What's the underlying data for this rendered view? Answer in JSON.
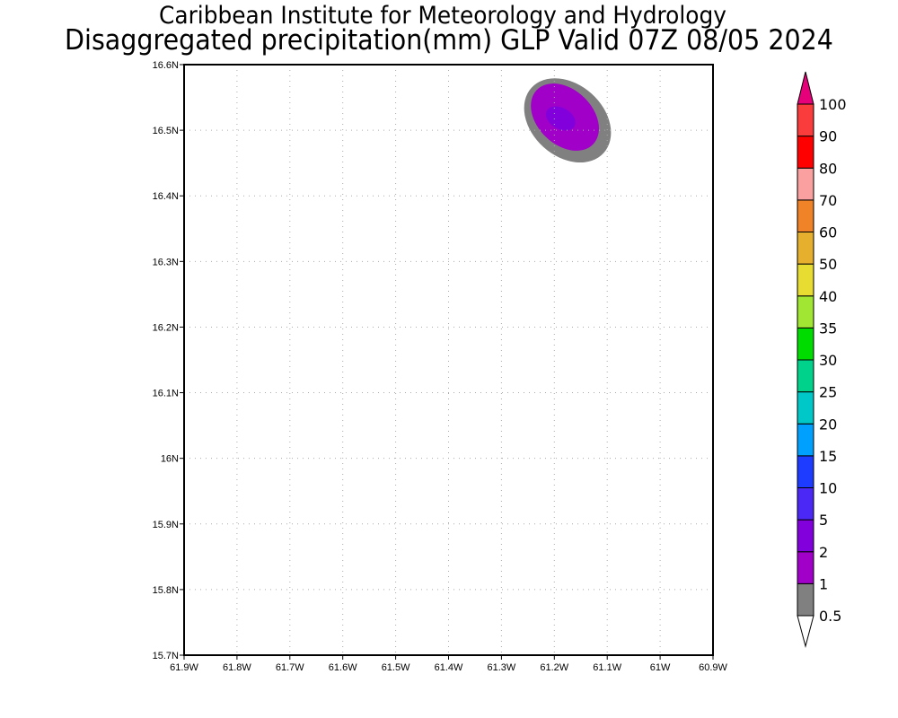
{
  "title": "Caribbean Institute for Meteorology and Hydrology",
  "subtitle": "Disaggregated precipitation(mm) GLP Valid 07Z 08/05 2024",
  "chart_data": {
    "type": "heatmap",
    "xlim": [
      -61.9,
      -60.9
    ],
    "ylim": [
      15.7,
      16.6
    ],
    "x_ticks": [
      -61.9,
      -61.8,
      -61.7,
      -61.6,
      -61.5,
      -61.4,
      -61.3,
      -61.2,
      -61.1,
      -61.0,
      -60.9
    ],
    "x_tick_labels": [
      "61.9W",
      "61.8W",
      "61.7W",
      "61.6W",
      "61.5W",
      "61.4W",
      "61.3W",
      "61.2W",
      "61.1W",
      "61W",
      "60.9W"
    ],
    "y_ticks": [
      15.7,
      15.8,
      15.9,
      16.0,
      16.1,
      16.2,
      16.3,
      16.4,
      16.5,
      16.6
    ],
    "y_tick_labels": [
      "15.7N",
      "15.8N",
      "15.9N",
      "16N",
      "16.1N",
      "16.2N",
      "16.3N",
      "16.4N",
      "16.5N",
      "16.6N"
    ],
    "grid": true,
    "precip_features": [
      {
        "level_mm": 0.5,
        "center_lon": -61.175,
        "center_lat": 16.515,
        "semi_major_deg": 0.092,
        "semi_minor_deg": 0.068,
        "rotation_deg": 42
      },
      {
        "level_mm": 1,
        "center_lon": -61.18,
        "center_lat": 16.52,
        "semi_major_deg": 0.074,
        "semi_minor_deg": 0.052,
        "rotation_deg": 44
      },
      {
        "level_mm": 2,
        "center_lon": -61.188,
        "center_lat": 16.518,
        "semi_major_deg": 0.03,
        "semi_minor_deg": 0.02,
        "rotation_deg": 30
      }
    ],
    "colorbar": {
      "labels": [
        "0.5",
        "1",
        "2",
        "5",
        "10",
        "15",
        "20",
        "25",
        "30",
        "35",
        "40",
        "50",
        "60",
        "70",
        "80",
        "90",
        "100"
      ],
      "colors": [
        "#808080",
        "#a000c8",
        "#8200dc",
        "#4b28f5",
        "#1e3cff",
        "#00a0ff",
        "#00c8c8",
        "#00d28c",
        "#00dc00",
        "#a0e632",
        "#e6dc32",
        "#e6af2d",
        "#f08228",
        "#faa0a0",
        "#ff0000",
        "#fa3c3c"
      ],
      "under_color": "#ffffff",
      "over_color": "#e6007a"
    }
  }
}
